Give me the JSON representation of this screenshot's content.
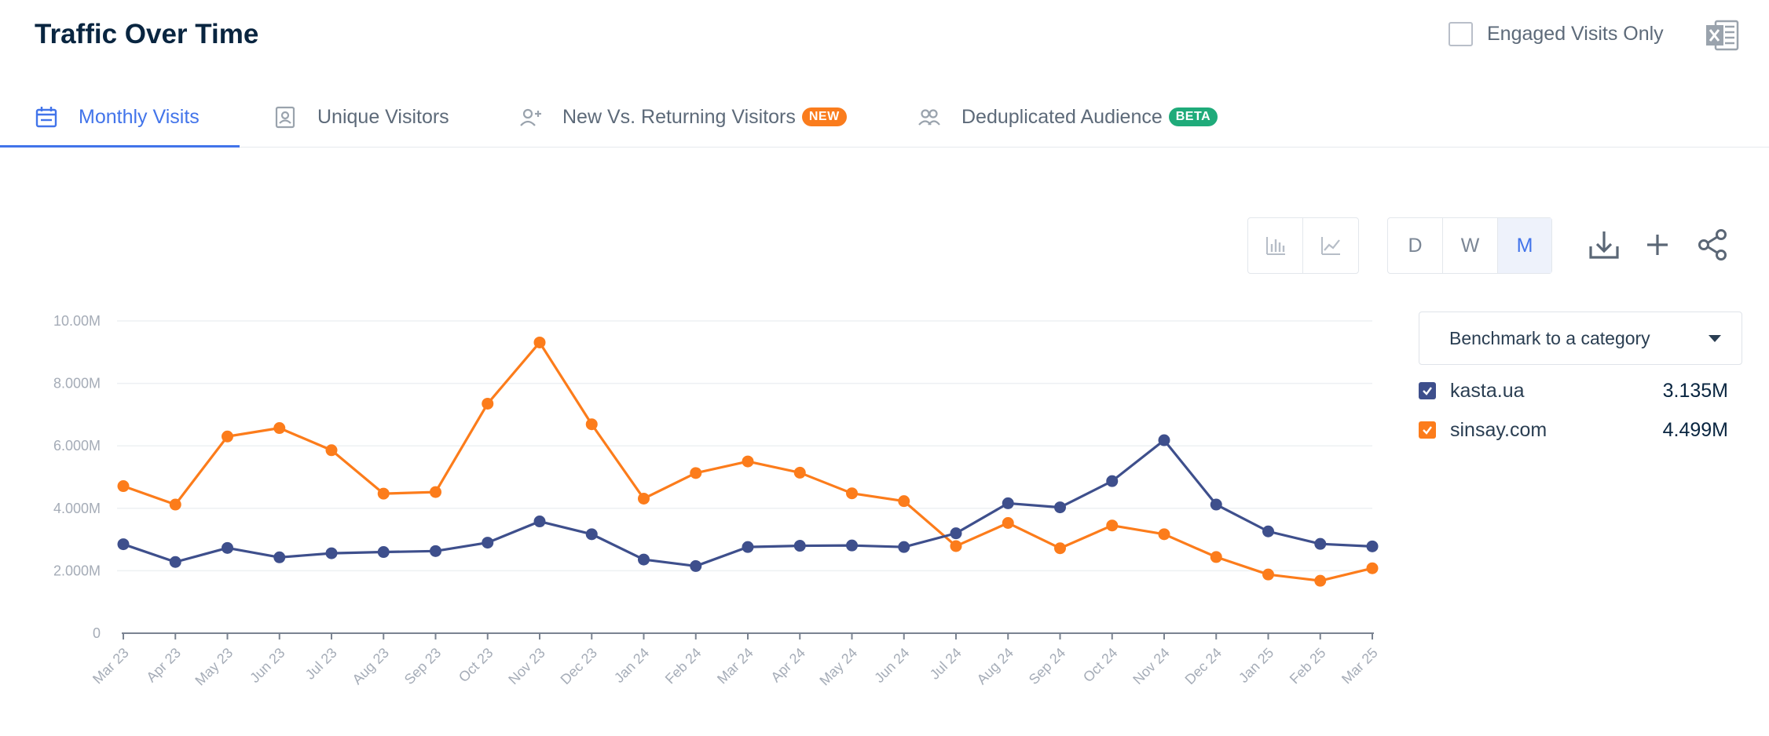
{
  "header": {
    "title": "Traffic Over Time",
    "engaged_label": "Engaged Visits Only",
    "excel_icon": "excel-export-icon"
  },
  "tabs": [
    {
      "label": "Monthly Visits",
      "icon": "calendar-icon",
      "active": true
    },
    {
      "label": "Unique Visitors",
      "icon": "id-badge-icon",
      "active": false
    },
    {
      "label": "New Vs. Returning Visitors",
      "icon": "user-plus-icon",
      "badge": "NEW",
      "active": false
    },
    {
      "label": "Deduplicated Audience",
      "icon": "users-icon",
      "badge": "BETA",
      "active": false
    }
  ],
  "toolbar": {
    "chart_types": [
      "bar-chart-icon",
      "line-chart-icon"
    ],
    "granularity": [
      "D",
      "W",
      "M"
    ],
    "selected_granularity": "M",
    "actions": [
      "download-icon",
      "plus-icon",
      "share-icon"
    ]
  },
  "benchmark": {
    "label": "Benchmark to a category"
  },
  "legend": [
    {
      "name": "kasta.ua",
      "value": "3.135M",
      "color": "#3e4f8c"
    },
    {
      "name": "sinsay.com",
      "value": "4.499M",
      "color": "#fc7c1b"
    }
  ],
  "chart_data": {
    "type": "line",
    "title": "",
    "xlabel": "",
    "ylabel": "",
    "ylim": [
      0,
      10000000
    ],
    "y_ticks": [
      "0",
      "2.000M",
      "4.000M",
      "6.000M",
      "8.000M",
      "10.00M"
    ],
    "grid": true,
    "categories": [
      "Mar 23",
      "Apr 23",
      "May 23",
      "Jun 23",
      "Jul 23",
      "Aug 23",
      "Sep 23",
      "Oct 23",
      "Nov 23",
      "Dec 23",
      "Jan 24",
      "Feb 24",
      "Mar 24",
      "Apr 24",
      "May 24",
      "Jun 24",
      "Jul 24",
      "Aug 24",
      "Sep 24",
      "Oct 24",
      "Nov 24",
      "Dec 24",
      "Jan 25",
      "Feb 25",
      "Mar 25"
    ],
    "series": [
      {
        "name": "kasta.ua",
        "color": "#3e4f8c",
        "values": [
          2850000,
          2280000,
          2730000,
          2430000,
          2560000,
          2600000,
          2630000,
          2900000,
          3580000,
          3170000,
          2360000,
          2150000,
          2760000,
          2800000,
          2810000,
          2760000,
          3200000,
          4160000,
          4030000,
          4870000,
          6180000,
          4120000,
          3260000,
          2860000,
          2780000
        ]
      },
      {
        "name": "sinsay.com",
        "color": "#fc7c1b",
        "values": [
          4710000,
          4120000,
          6300000,
          6570000,
          5860000,
          4470000,
          4520000,
          7350000,
          9310000,
          6690000,
          4310000,
          5130000,
          5500000,
          5140000,
          4480000,
          4230000,
          2790000,
          3530000,
          2720000,
          3450000,
          3170000,
          2440000,
          1880000,
          1680000,
          2080000
        ]
      }
    ]
  }
}
